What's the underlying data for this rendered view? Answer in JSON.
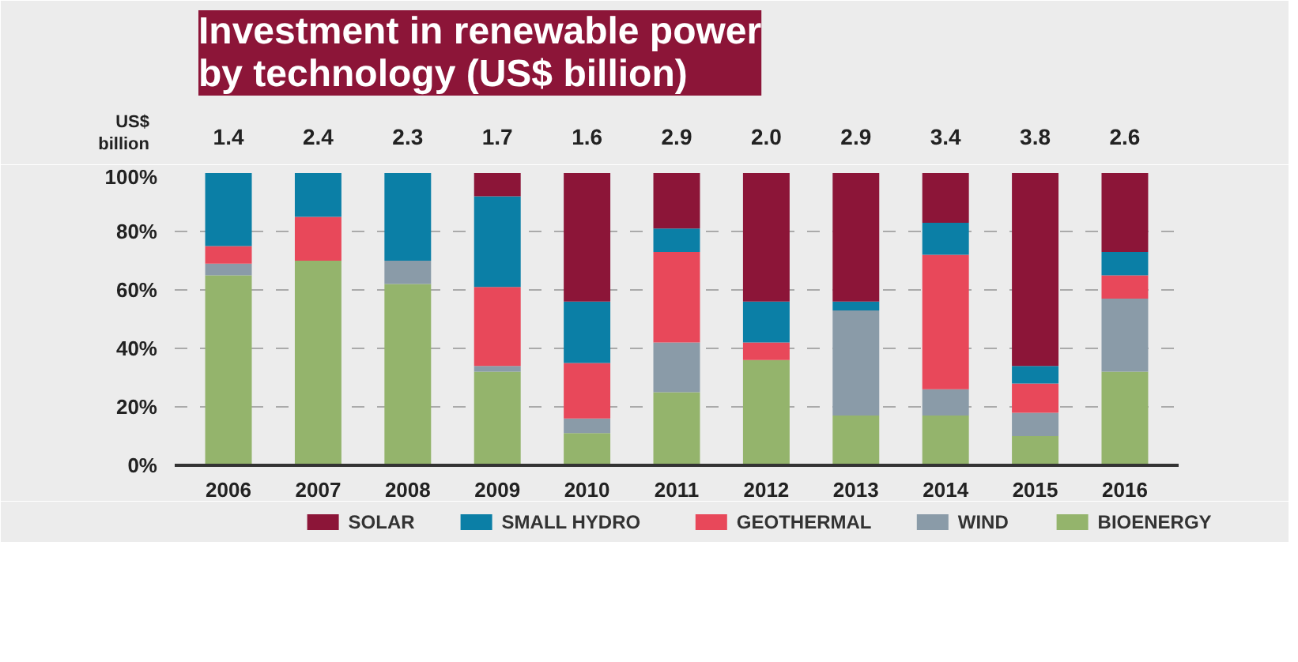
{
  "chart_data": {
    "type": "bar",
    "title": "Investment in renewable power\nby technology (US$ billion)",
    "categories": [
      "2006",
      "2007",
      "2008",
      "2009",
      "2010",
      "2011",
      "2012",
      "2013",
      "2014",
      "2015",
      "2016"
    ],
    "stacked": true,
    "series": [
      {
        "name": "BIOENERGY",
        "color": "#94b46c",
        "values": [
          65,
          70,
          62,
          32,
          11,
          25,
          36,
          17,
          17,
          10,
          32
        ]
      },
      {
        "name": "WIND",
        "color": "#8a9ba8",
        "values": [
          4,
          0,
          8,
          2,
          5,
          17,
          0,
          36,
          9,
          8,
          25
        ]
      },
      {
        "name": "GEOTHERMAL",
        "color": "#e8485a",
        "values": [
          6,
          15,
          0,
          27,
          19,
          31,
          6,
          0,
          46,
          10,
          8
        ]
      },
      {
        "name": "SMALL HYDRO",
        "color": "#0b7fa6",
        "values": [
          25,
          15,
          30,
          31,
          21,
          8,
          14,
          3,
          11,
          6,
          8
        ]
      },
      {
        "name": "SOLAR",
        "color": "#8c1538",
        "values": [
          0,
          0,
          0,
          8,
          44,
          19,
          44,
          44,
          17,
          66,
          27
        ]
      }
    ],
    "annotations": [
      "US$\nbillion",
      "1.4",
      "2.4",
      "2.3",
      "1.7",
      "1.6",
      "2.9",
      "2.0",
      "2.9",
      "3.4",
      "3.8",
      "2.6"
    ],
    "ylim": [
      0,
      100
    ],
    "yticks": [
      {
        "value": 0,
        "label": "0%"
      },
      {
        "value": 20,
        "label": "20%"
      },
      {
        "value": 40,
        "label": "40%"
      },
      {
        "value": 60,
        "label": "60%"
      },
      {
        "value": 80,
        "label": "80%"
      },
      {
        "value": 100,
        "label": "100%"
      }
    ],
    "grid": "y",
    "legend": "bottom"
  }
}
